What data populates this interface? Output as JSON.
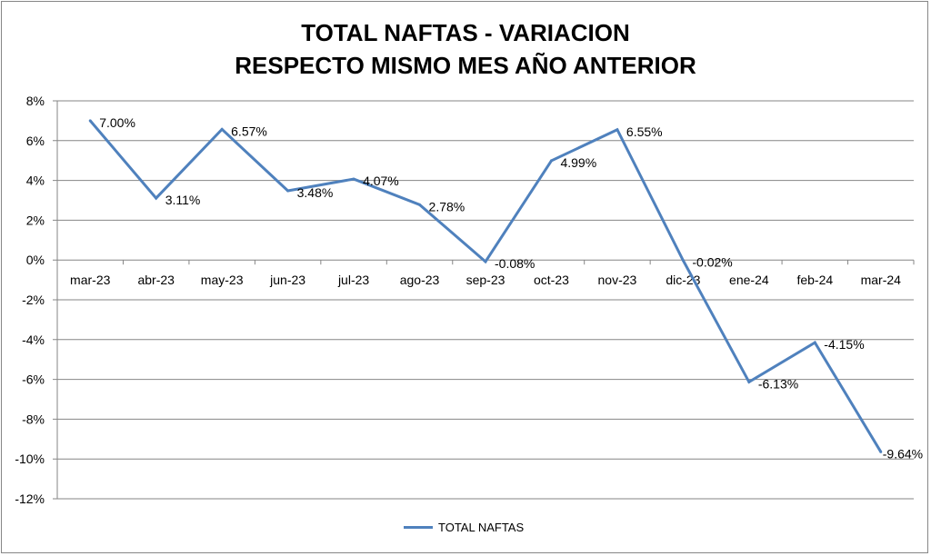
{
  "chart_data": {
    "type": "line",
    "title": [
      "TOTAL NAFTAS - VARIACION",
      "RESPECTO MISMO MES AÑO ANTERIOR"
    ],
    "xlabel": "",
    "ylabel": "",
    "categories": [
      "mar-23",
      "abr-23",
      "may-23",
      "jun-23",
      "jul-23",
      "ago-23",
      "sep-23",
      "oct-23",
      "nov-23",
      "dic-23",
      "ene-24",
      "feb-24",
      "mar-24"
    ],
    "series": [
      {
        "name": "TOTAL NAFTAS",
        "color": "#4F81BD",
        "values": [
          7.0,
          3.11,
          6.57,
          3.48,
          4.07,
          2.78,
          -0.08,
          4.99,
          6.55,
          -0.02,
          -6.13,
          -4.15,
          -9.64
        ],
        "labels": [
          "7.00%",
          "3.11%",
          "6.57%",
          "3.48%",
          "4.07%",
          "2.78%",
          "-0.08%",
          "4.99%",
          "6.55%",
          "-0.02%",
          "-6.13%",
          "-4.15%",
          "-9.64%"
        ]
      }
    ],
    "ylim": [
      -12,
      8
    ],
    "yticks": [
      8,
      6,
      4,
      2,
      0,
      -2,
      -4,
      -6,
      -8,
      -10,
      -12
    ],
    "ytick_labels": [
      "8%",
      "6%",
      "4%",
      "2%",
      "0%",
      "-2%",
      "-4%",
      "-6%",
      "-8%",
      "-10%",
      "-12%"
    ],
    "grid": true,
    "legend": "bottom"
  }
}
